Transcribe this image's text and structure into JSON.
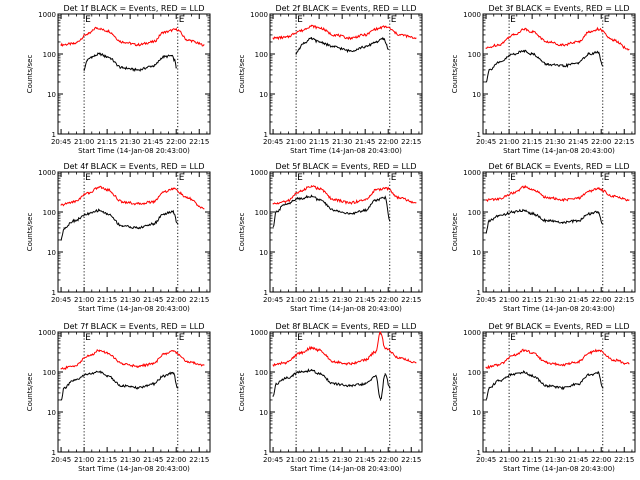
{
  "colors": {
    "events": "#000000",
    "lld": "#ff0000",
    "axes": "#000000",
    "background": "#ffffff"
  },
  "common": {
    "xlabel": "Start Time (14-Jan-08 20:43:00)",
    "ylabel": "Counts/sec",
    "x_tick_labels": [
      "20:45",
      "21:00",
      "21:15",
      "21:30",
      "21:45",
      "22:00",
      "22:15"
    ],
    "y_tick_labels": [
      "1",
      "10",
      "100",
      "1000"
    ],
    "marker_label": "E"
  },
  "chart_data": [
    {
      "type": "line",
      "title": "Det 1f BLACK = Events, RED = LLD",
      "xlabel": "Start Time (14-Jan-08 20:43:00)",
      "ylabel": "Counts/sec",
      "xlim": [
        "20:43",
        "22:22"
      ],
      "ylim": [
        1,
        1000
      ],
      "yscale": "log",
      "event_markers": [
        "21:00",
        "22:01"
      ],
      "grid": false,
      "legend": "none",
      "series": [
        {
          "color": "#ff0000",
          "x": [
            "20:45",
            "20:53",
            "21:03",
            "21:08",
            "21:15",
            "21:25",
            "21:35",
            "21:45",
            "21:52",
            "22:00",
            "22:08",
            "22:18"
          ],
          "values": [
            170,
            180,
            320,
            450,
            380,
            200,
            170,
            200,
            350,
            410,
            220,
            170
          ]
        },
        {
          "color": "#000000",
          "x": [
            "21:00",
            "21:02",
            "21:05",
            "21:10",
            "21:15",
            "21:25",
            "21:35",
            "21:45",
            "21:52",
            "21:57",
            "21:59",
            "22:00"
          ],
          "values": [
            40,
            70,
            85,
            100,
            85,
            45,
            40,
            50,
            85,
            90,
            70,
            45
          ]
        }
      ]
    },
    {
      "type": "line",
      "title": "Det 2f BLACK = Events, RED = LLD",
      "xlabel": "Start Time (14-Jan-08 20:43:00)",
      "ylabel": "Counts/sec",
      "xlim": [
        "20:43",
        "22:22"
      ],
      "ylim": [
        1,
        1000
      ],
      "yscale": "log",
      "event_markers": [
        "21:00",
        "22:01"
      ],
      "grid": false,
      "legend": "none",
      "series": [
        {
          "color": "#ff0000",
          "x": [
            "20:45",
            "20:53",
            "21:03",
            "21:10",
            "21:15",
            "21:25",
            "21:35",
            "21:45",
            "21:52",
            "21:58",
            "22:08",
            "22:18"
          ],
          "values": [
            250,
            260,
            380,
            500,
            450,
            300,
            250,
            300,
            420,
            480,
            300,
            250
          ]
        },
        {
          "color": "#000000",
          "x": [
            "21:00",
            "21:02",
            "21:05",
            "21:10",
            "21:15",
            "21:25",
            "21:35",
            "21:45",
            "21:52",
            "21:57",
            "21:59",
            "22:00"
          ],
          "values": [
            100,
            140,
            190,
            240,
            200,
            150,
            120,
            150,
            200,
            240,
            170,
            130
          ]
        }
      ]
    },
    {
      "type": "line",
      "title": "Det 3f BLACK = Events, RED = LLD",
      "xlabel": "Start Time (14-Jan-08 20:43:00)",
      "ylabel": "Counts/sec",
      "xlim": [
        "20:43",
        "22:22"
      ],
      "ylim": [
        1,
        1000
      ],
      "yscale": "log",
      "event_markers": [
        "21:00",
        "22:01"
      ],
      "grid": false,
      "legend": "none",
      "series": [
        {
          "color": "#ff0000",
          "x": [
            "20:45",
            "20:53",
            "21:03",
            "21:10",
            "21:15",
            "21:25",
            "21:35",
            "21:45",
            "21:52",
            "21:58",
            "22:08",
            "22:18"
          ],
          "values": [
            140,
            170,
            300,
            420,
            360,
            200,
            170,
            200,
            350,
            420,
            220,
            130
          ]
        },
        {
          "color": "#000000",
          "x": [
            "20:45",
            "20:47",
            "20:53",
            "21:03",
            "21:10",
            "21:15",
            "21:25",
            "21:35",
            "21:45",
            "21:52",
            "21:58",
            "22:01"
          ],
          "values": [
            20,
            40,
            60,
            100,
            120,
            100,
            55,
            50,
            60,
            100,
            110,
            50
          ]
        }
      ]
    },
    {
      "type": "line",
      "title": "Det 4f BLACK = Events, RED = LLD",
      "xlabel": "Start Time (14-Jan-08 20:43:00)",
      "ylabel": "Counts/sec",
      "xlim": [
        "20:43",
        "22:22"
      ],
      "ylim": [
        1,
        1000
      ],
      "yscale": "log",
      "event_markers": [
        "21:00",
        "22:01"
      ],
      "grid": false,
      "legend": "none",
      "series": [
        {
          "color": "#ff0000",
          "x": [
            "20:45",
            "20:53",
            "21:03",
            "21:10",
            "21:15",
            "21:25",
            "21:35",
            "21:45",
            "21:52",
            "21:58",
            "22:08",
            "22:18"
          ],
          "values": [
            150,
            180,
            300,
            420,
            360,
            180,
            160,
            180,
            320,
            380,
            220,
            120
          ]
        },
        {
          "color": "#000000",
          "x": [
            "20:45",
            "20:47",
            "20:53",
            "21:03",
            "21:10",
            "21:15",
            "21:25",
            "21:35",
            "21:45",
            "21:52",
            "21:58",
            "22:01"
          ],
          "values": [
            20,
            40,
            60,
            90,
            110,
            90,
            45,
            40,
            50,
            90,
            100,
            50
          ]
        }
      ]
    },
    {
      "type": "line",
      "title": "Det 5f BLACK = Events, RED = LLD",
      "xlabel": "Start Time (14-Jan-08 20:43:00)",
      "ylabel": "Counts/sec",
      "xlim": [
        "20:43",
        "22:22"
      ],
      "ylim": [
        1,
        1000
      ],
      "yscale": "log",
      "event_markers": [
        "21:00",
        "22:01"
      ],
      "grid": false,
      "legend": "none",
      "series": [
        {
          "color": "#ff0000",
          "x": [
            "20:45",
            "20:53",
            "21:03",
            "21:10",
            "21:15",
            "21:25",
            "21:35",
            "21:45",
            "21:52",
            "21:58",
            "22:08",
            "22:18"
          ],
          "values": [
            160,
            180,
            330,
            450,
            380,
            200,
            170,
            200,
            350,
            400,
            220,
            170
          ]
        },
        {
          "color": "#000000",
          "x": [
            "20:45",
            "20:47",
            "20:53",
            "21:03",
            "21:10",
            "21:15",
            "21:25",
            "21:35",
            "21:45",
            "21:52",
            "21:58",
            "22:01"
          ],
          "values": [
            40,
            100,
            160,
            220,
            250,
            200,
            110,
            90,
            110,
            200,
            230,
            60
          ]
        }
      ]
    },
    {
      "type": "line",
      "title": "Det 6f BLACK = Events, RED = LLD",
      "xlabel": "Start Time (14-Jan-08 20:43:00)",
      "ylabel": "Counts/sec",
      "xlim": [
        "20:43",
        "22:22"
      ],
      "ylim": [
        1,
        1000
      ],
      "yscale": "log",
      "event_markers": [
        "21:00",
        "22:01"
      ],
      "grid": false,
      "legend": "none",
      "series": [
        {
          "color": "#ff0000",
          "x": [
            "20:45",
            "20:53",
            "21:03",
            "21:10",
            "21:15",
            "21:25",
            "21:35",
            "21:45",
            "21:52",
            "21:58",
            "22:08",
            "22:18"
          ],
          "values": [
            200,
            210,
            300,
            420,
            360,
            230,
            200,
            220,
            330,
            380,
            250,
            200
          ]
        },
        {
          "color": "#000000",
          "x": [
            "20:45",
            "20:47",
            "20:53",
            "21:03",
            "21:10",
            "21:15",
            "21:25",
            "21:35",
            "21:45",
            "21:52",
            "21:58",
            "22:01"
          ],
          "values": [
            30,
            60,
            80,
            100,
            110,
            90,
            60,
            55,
            60,
            90,
            100,
            50
          ]
        }
      ]
    },
    {
      "type": "line",
      "title": "Det 7f BLACK = Events, RED = LLD",
      "xlabel": "Start Time (14-Jan-08 20:43:00)",
      "ylabel": "Counts/sec",
      "xlim": [
        "20:43",
        "22:22"
      ],
      "ylim": [
        1,
        1000
      ],
      "yscale": "log",
      "event_markers": [
        "21:00",
        "22:01"
      ],
      "grid": false,
      "legend": "none",
      "series": [
        {
          "color": "#ff0000",
          "x": [
            "20:45",
            "20:53",
            "21:03",
            "21:10",
            "21:15",
            "21:25",
            "21:35",
            "21:45",
            "21:52",
            "21:58",
            "22:08",
            "22:18"
          ],
          "values": [
            120,
            140,
            250,
            350,
            300,
            160,
            140,
            160,
            280,
            330,
            180,
            150
          ]
        },
        {
          "color": "#000000",
          "x": [
            "20:45",
            "20:47",
            "20:53",
            "21:03",
            "21:10",
            "21:15",
            "21:25",
            "21:35",
            "21:45",
            "21:52",
            "21:58",
            "22:01"
          ],
          "values": [
            20,
            40,
            60,
            90,
            100,
            80,
            45,
            40,
            50,
            80,
            95,
            40
          ]
        }
      ]
    },
    {
      "type": "line",
      "title": "Det 8f BLACK = Events, RED = LLD",
      "xlabel": "Start Time (14-Jan-08 20:43:00)",
      "ylabel": "Counts/sec",
      "xlim": [
        "20:43",
        "22:22"
      ],
      "ylim": [
        1,
        1000
      ],
      "yscale": "log",
      "event_markers": [
        "21:00",
        "22:01"
      ],
      "grid": false,
      "legend": "none",
      "series": [
        {
          "color": "#ff0000",
          "x": [
            "20:45",
            "20:53",
            "21:03",
            "21:10",
            "21:15",
            "21:25",
            "21:35",
            "21:45",
            "21:52",
            "21:55",
            "21:58",
            "22:08",
            "22:18"
          ],
          "values": [
            150,
            170,
            300,
            400,
            350,
            180,
            160,
            200,
            320,
            1000,
            380,
            220,
            170
          ]
        },
        {
          "color": "#000000",
          "x": [
            "20:45",
            "20:47",
            "20:53",
            "21:03",
            "21:10",
            "21:15",
            "21:25",
            "21:35",
            "21:45",
            "21:52",
            "21:55",
            "21:58",
            "22:01"
          ],
          "values": [
            25,
            50,
            70,
            100,
            110,
            90,
            50,
            45,
            50,
            80,
            20,
            90,
            40
          ]
        }
      ]
    },
    {
      "type": "line",
      "title": "Det 9f BLACK = Events, RED = LLD",
      "xlabel": "Start Time (14-Jan-08 20:43:00)",
      "ylabel": "Counts/sec",
      "xlim": [
        "20:43",
        "22:22"
      ],
      "ylim": [
        1,
        1000
      ],
      "yscale": "log",
      "event_markers": [
        "21:00",
        "22:01"
      ],
      "grid": false,
      "legend": "none",
      "series": [
        {
          "color": "#ff0000",
          "x": [
            "20:45",
            "20:53",
            "21:03",
            "21:10",
            "21:15",
            "21:25",
            "21:35",
            "21:45",
            "21:52",
            "21:58",
            "22:08",
            "22:18"
          ],
          "values": [
            130,
            150,
            260,
            350,
            300,
            170,
            150,
            180,
            300,
            350,
            200,
            160
          ]
        },
        {
          "color": "#000000",
          "x": [
            "20:45",
            "20:47",
            "20:53",
            "21:03",
            "21:10",
            "21:15",
            "21:25",
            "21:35",
            "21:45",
            "21:52",
            "21:58",
            "22:01"
          ],
          "values": [
            20,
            40,
            60,
            90,
            100,
            80,
            45,
            40,
            50,
            85,
            95,
            40
          ]
        }
      ]
    }
  ]
}
